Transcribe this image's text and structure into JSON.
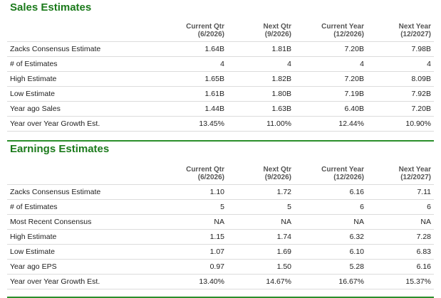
{
  "sales": {
    "title": "Sales Estimates",
    "headers": [
      {
        "line1": "Current Qtr",
        "line2": "(6/2026)"
      },
      {
        "line1": "Next Qtr",
        "line2": "(9/2026)"
      },
      {
        "line1": "Current Year",
        "line2": "(12/2026)"
      },
      {
        "line1": "Next Year",
        "line2": "(12/2027)"
      }
    ],
    "rows": [
      {
        "label": "Zacks Consensus Estimate",
        "values": [
          "1.64B",
          "1.81B",
          "7.20B",
          "7.98B"
        ]
      },
      {
        "label": "# of Estimates",
        "values": [
          "4",
          "4",
          "4",
          "4"
        ]
      },
      {
        "label": "High Estimate",
        "values": [
          "1.65B",
          "1.82B",
          "7.20B",
          "8.09B"
        ]
      },
      {
        "label": "Low Estimate",
        "values": [
          "1.61B",
          "1.80B",
          "7.19B",
          "7.92B"
        ]
      },
      {
        "label": "Year ago Sales",
        "values": [
          "1.44B",
          "1.63B",
          "6.40B",
          "7.20B"
        ]
      },
      {
        "label": "Year over Year Growth Est.",
        "values": [
          "13.45%",
          "11.00%",
          "12.44%",
          "10.90%"
        ]
      }
    ]
  },
  "earnings": {
    "title": "Earnings Estimates",
    "headers": [
      {
        "line1": "Current Qtr",
        "line2": "(6/2026)"
      },
      {
        "line1": "Next Qtr",
        "line2": "(9/2026)"
      },
      {
        "line1": "Current Year",
        "line2": "(12/2026)"
      },
      {
        "line1": "Next Year",
        "line2": "(12/2027)"
      }
    ],
    "rows": [
      {
        "label": "Zacks Consensus Estimate",
        "values": [
          "1.10",
          "1.72",
          "6.16",
          "7.11"
        ]
      },
      {
        "label": "# of Estimates",
        "values": [
          "5",
          "5",
          "6",
          "6"
        ]
      },
      {
        "label": "Most Recent Consensus",
        "values": [
          "NA",
          "NA",
          "NA",
          "NA"
        ]
      },
      {
        "label": "High Estimate",
        "values": [
          "1.15",
          "1.74",
          "6.32",
          "7.28"
        ]
      },
      {
        "label": "Low Estimate",
        "values": [
          "1.07",
          "1.69",
          "6.10",
          "6.83"
        ]
      },
      {
        "label": "Year ago EPS",
        "values": [
          "0.97",
          "1.50",
          "5.28",
          "6.16"
        ]
      },
      {
        "label": "Year over Year Growth Est.",
        "values": [
          "13.40%",
          "14.67%",
          "16.67%",
          "15.37%"
        ]
      }
    ]
  },
  "colors": {
    "accent": "#1b7a1b",
    "rule": "#2a8f2a"
  }
}
